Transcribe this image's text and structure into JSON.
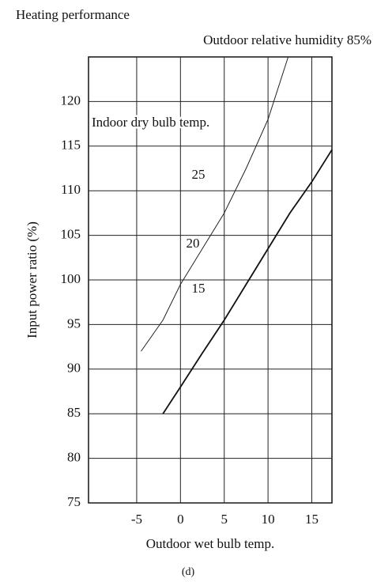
{
  "chart_data": {
    "type": "line",
    "title": "Heating performance",
    "subtitle": "Outdoor relative humidity 85%",
    "y_label": "Input power ratio (%)",
    "x_label": "Outdoor wet bulb temp.",
    "caption": "(d)",
    "annotations": [
      "Indoor dry bulb temp.",
      "25",
      "20",
      "15"
    ],
    "series": [
      {
        "color": "#222",
        "x": [
          -4.5,
          -2,
          0,
          2.5,
          5,
          7.5,
          10,
          12.3
        ],
        "values": [
          92,
          95.5,
          99.5,
          103.5,
          107.5,
          112.5,
          118,
          125
        ]
      },
      {
        "color": "#111",
        "x": [
          -2,
          0,
          2.5,
          5,
          7.5,
          10,
          12.5,
          15,
          17.3
        ],
        "values": [
          85,
          88,
          91.8,
          95.5,
          99.5,
          103.5,
          107.5,
          111,
          114.6
        ]
      }
    ],
    "xlim": [
      -10.5,
      17.3
    ],
    "xticks": [
      -5,
      0,
      5,
      10,
      15
    ],
    "ylim": [
      75,
      125
    ],
    "yticks": [
      75,
      80,
      85,
      90,
      95,
      100,
      105,
      110,
      115,
      120
    ],
    "grid": true
  }
}
